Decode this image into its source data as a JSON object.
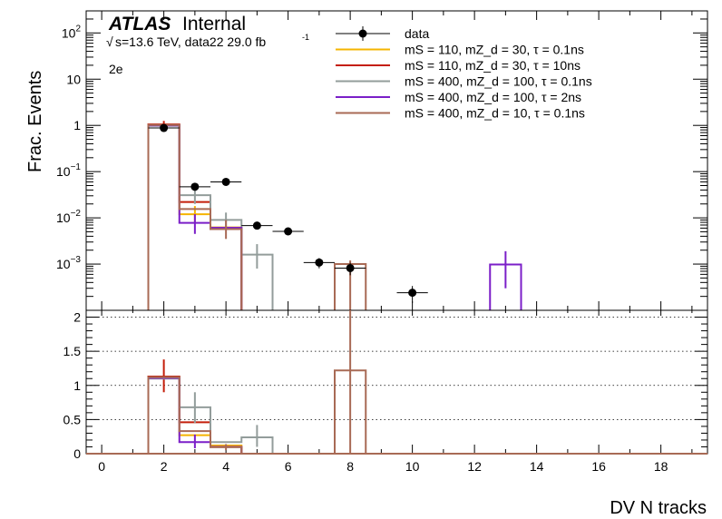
{
  "chart_data": {
    "type": "histogram",
    "xlabel": "DV N tracks",
    "top_panel": {
      "ylabel": "Frac. Events",
      "yscale": "log",
      "ylim": [
        0.0001,
        300
      ],
      "y_ticks": [
        {
          "value": 0.001,
          "base": "10",
          "exp": "−3"
        },
        {
          "value": 0.01,
          "base": "10",
          "exp": "−2"
        },
        {
          "value": 0.1,
          "base": "10",
          "exp": "−1"
        },
        {
          "value": 1,
          "base": "1",
          "exp": ""
        },
        {
          "value": 10,
          "base": "10",
          "exp": ""
        },
        {
          "value": 100,
          "base": "10",
          "exp": "2"
        }
      ]
    },
    "bottom_panel": {
      "ylim": [
        0,
        2.1
      ],
      "y_ticks": [
        "0",
        "0.5",
        "1",
        "1.5",
        "2"
      ],
      "gridlines": [
        0.5,
        1,
        1.5,
        2
      ]
    },
    "xlim": [
      -0.5,
      19.5
    ],
    "x_ticks": [
      "0",
      "2",
      "4",
      "6",
      "8",
      "10",
      "12",
      "14",
      "16",
      "18"
    ],
    "annotations": {
      "atlas": "ATLAS",
      "atlas_status": "Internal",
      "sqrt_s": "s=13.6 TeV, data22 29.0 fb",
      "lumi_exp": "-1",
      "channel": "2e"
    },
    "legend": {
      "placement": "top-right",
      "entries": [
        {
          "kind": "marker",
          "color": "#000000",
          "label": "data"
        },
        {
          "kind": "line",
          "color": "#f5b400",
          "label": "mS = 110, mZ_d = 30, τ = 0.1ns"
        },
        {
          "kind": "line",
          "color": "#c41e0a",
          "label": "mS = 110, mZ_d = 30, τ = 10ns"
        },
        {
          "kind": "line",
          "color": "#939d9b",
          "label": "mS = 400, mZ_d = 100, τ = 0.1ns"
        },
        {
          "kind": "line",
          "color": "#7b1fc8",
          "label": "mS = 400, mZ_d = 100, τ = 2ns"
        },
        {
          "kind": "line",
          "color": "#a86a55",
          "label": "mS = 400, mZ_d = 10, τ = 0.1ns"
        }
      ]
    },
    "data": {
      "name": "data",
      "color": "#000000",
      "x": [
        2,
        3,
        4,
        5,
        6,
        7,
        8,
        10
      ],
      "y": [
        0.88,
        0.047,
        0.06,
        0.0068,
        0.0051,
        0.00108,
        0.00082,
        0.00024
      ],
      "yerr_rel": [
        0.05,
        0.1,
        0.08,
        0.15,
        0.15,
        0.25,
        0.3,
        0.4
      ]
    },
    "series": [
      {
        "name": "mS = 110, mZ_d = 30, τ = 0.1ns",
        "color": "#f5b400",
        "bins": [
          {
            "x": 2,
            "y": 1.0
          },
          {
            "x": 3,
            "y": 0.012,
            "err": [
              0.008,
              0.018
            ]
          },
          {
            "x": 4,
            "y": 0.0062
          }
        ],
        "ratio": [
          {
            "x": 2,
            "y": 1.12
          },
          {
            "x": 3,
            "y": 0.27
          },
          {
            "x": 4,
            "y": 0.12
          }
        ]
      },
      {
        "name": "mS = 110, mZ_d = 30, τ = 10ns",
        "color": "#c41e0a",
        "bins": [
          {
            "x": 2,
            "y": 1.05,
            "err": [
              0.8,
              1.25
            ]
          },
          {
            "x": 3,
            "y": 0.022
          },
          {
            "x": 4,
            "y": 0.0058
          }
        ],
        "ratio": [
          {
            "x": 2,
            "y": 1.13,
            "err": [
              0.9,
              1.38
            ]
          },
          {
            "x": 3,
            "y": 0.46
          },
          {
            "x": 4,
            "y": 0.1
          }
        ]
      },
      {
        "name": "mS = 400, mZ_d = 100, τ = 0.1ns",
        "color": "#939d9b",
        "bins": [
          {
            "x": 2,
            "y": 0.98
          },
          {
            "x": 3,
            "y": 0.031,
            "err": [
              0.02,
              0.045
            ]
          },
          {
            "x": 4,
            "y": 0.009,
            "err": [
              0.006,
              0.013
            ]
          },
          {
            "x": 5,
            "y": 0.0016,
            "err": [
              0.0008,
              0.0027
            ]
          }
        ],
        "ratio": [
          {
            "x": 2,
            "y": 1.1
          },
          {
            "x": 3,
            "y": 0.68,
            "err": [
              0.45,
              0.9
            ]
          },
          {
            "x": 4,
            "y": 0.17
          },
          {
            "x": 5,
            "y": 0.24,
            "err": [
              0.1,
              0.42
            ]
          }
        ]
      },
      {
        "name": "mS = 400, mZ_d = 100, τ = 2ns",
        "color": "#7b1fc8",
        "bins": [
          {
            "x": 2,
            "y": 1.0
          },
          {
            "x": 3,
            "y": 0.0078,
            "err": [
              0.0045,
              0.012
            ]
          },
          {
            "x": 4,
            "y": 0.0061
          },
          {
            "x": 13,
            "y": 0.00098,
            "err": [
              0.0003,
              0.0019
            ]
          }
        ],
        "ratio": [
          {
            "x": 2,
            "y": 1.11
          },
          {
            "x": 3,
            "y": 0.17,
            "err": [
              0.08,
              0.28
            ]
          },
          {
            "x": 4,
            "y": 0.1
          },
          {
            "x": 8,
            "y": 0.0
          }
        ]
      },
      {
        "name": "mS = 400, mZ_d = 10, τ = 0.1ns",
        "color": "#a86a55",
        "bins": [
          {
            "x": 2,
            "y": 1.02
          },
          {
            "x": 3,
            "y": 0.0155
          },
          {
            "x": 4,
            "y": 0.0057,
            "err": [
              0.0035,
              0.009
            ]
          },
          {
            "x": 8,
            "y": 0.001,
            "err": [
              0.0001,
              0.0012
            ]
          }
        ],
        "ratio": [
          {
            "x": 2,
            "y": 1.12
          },
          {
            "x": 3,
            "y": 0.33
          },
          {
            "x": 4,
            "y": 0.095,
            "err": [
              0.05,
              0.14
            ]
          },
          {
            "x": 8,
            "y": 1.22,
            "err": [
              0.0,
              2.1
            ]
          }
        ]
      }
    ]
  }
}
